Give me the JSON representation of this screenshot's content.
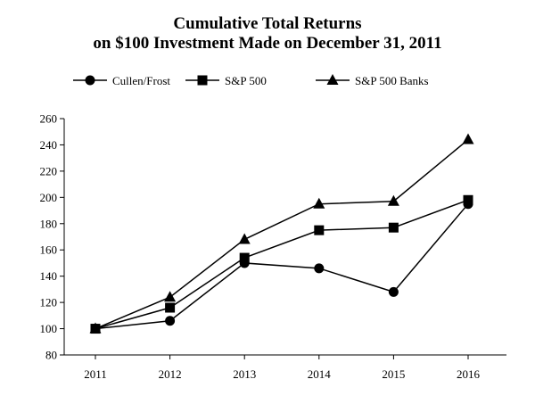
{
  "chart_data": {
    "type": "line",
    "title": "Cumulative Total Returns",
    "subtitle": "on $100 Investment Made on December 31, 2011",
    "xlabel": "",
    "ylabel": "",
    "categories": [
      "2011",
      "2012",
      "2013",
      "2014",
      "2015",
      "2016"
    ],
    "ylim": [
      80,
      260
    ],
    "yticks": [
      80,
      100,
      120,
      140,
      160,
      180,
      200,
      220,
      240,
      260
    ],
    "grid": false,
    "legend_position": "top",
    "series": [
      {
        "name": "Cullen/Frost",
        "marker": "circle",
        "values": [
          100,
          106,
          150,
          146,
          128,
          195
        ]
      },
      {
        "name": "S&P 500",
        "marker": "square",
        "values": [
          100,
          116,
          154,
          175,
          177,
          198
        ]
      },
      {
        "name": "S&P 500 Banks",
        "marker": "triangle",
        "values": [
          100,
          124,
          168,
          195,
          197,
          244
        ]
      }
    ]
  }
}
